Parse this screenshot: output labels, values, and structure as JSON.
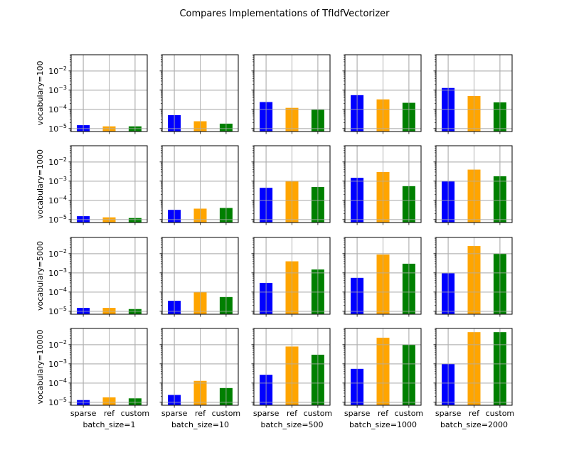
{
  "chart_data": {
    "type": "bar",
    "title": "Compares Implementations of TfIdfVectorizer",
    "yscale": "log",
    "ylim": [
      7e-06,
      0.07
    ],
    "grid": true,
    "categories": [
      "sparse",
      "ref",
      "custom"
    ],
    "colors": [
      "#0000ff",
      "#ffa500",
      "#008000"
    ],
    "yticks": [
      1e-05,
      0.0001,
      0.001,
      0.01
    ],
    "ytick_labels": [
      {
        "b": "10",
        "e": "−5"
      },
      {
        "b": "10",
        "e": "−4"
      },
      {
        "b": "10",
        "e": "−3"
      },
      {
        "b": "10",
        "e": "−2"
      }
    ],
    "rows": [
      "vocabulary=100",
      "vocabulary=1000",
      "vocabulary=5000",
      "vocabulary=10000"
    ],
    "cols": [
      "batch_size=1",
      "batch_size=10",
      "batch_size=500",
      "batch_size=1000",
      "batch_size=2000"
    ],
    "values": [
      [
        [
          1.5e-05,
          1.3e-05,
          1.3e-05
        ],
        [
          5e-05,
          2.4e-05,
          1.8e-05
        ],
        [
          0.00024,
          0.00012,
          9.5e-05
        ],
        [
          0.00055,
          0.00033,
          0.00022
        ],
        [
          0.0013,
          0.0005,
          0.00023
        ]
      ],
      [
        [
          1.5e-05,
          1.3e-05,
          1.2e-05
        ],
        [
          3.2e-05,
          3.7e-05,
          4e-05
        ],
        [
          0.00045,
          0.001,
          0.0005
        ],
        [
          0.0015,
          0.003,
          0.00055
        ],
        [
          0.001,
          0.004,
          0.0018
        ]
      ],
      [
        [
          1.5e-05,
          1.5e-05,
          1.3e-05
        ],
        [
          3.5e-05,
          0.0001,
          5.5e-05
        ],
        [
          0.0003,
          0.004,
          0.0015
        ],
        [
          0.00055,
          0.009,
          0.003
        ],
        [
          0.00095,
          0.025,
          0.01
        ]
      ],
      [
        [
          1.3e-05,
          1.8e-05,
          1.6e-05
        ],
        [
          2.4e-05,
          0.00013,
          5.5e-05
        ],
        [
          0.00027,
          0.008,
          0.003
        ],
        [
          0.00055,
          0.023,
          0.01
        ],
        [
          0.001,
          0.045,
          0.045
        ]
      ]
    ]
  }
}
